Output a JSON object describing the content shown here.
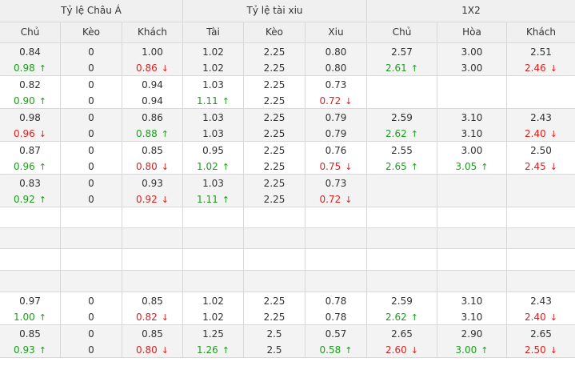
{
  "groups": [
    "Tỷ lệ Châu Á",
    "Tỷ lệ tài xiu",
    "1X2"
  ],
  "columns": [
    "Chủ",
    "Kèo",
    "Khách",
    "Tài",
    "Kèo",
    "Xiu",
    "Chủ",
    "Hòa",
    "Khách"
  ],
  "colors": {
    "up": "#19a019",
    "down": "#e41c1c",
    "header_bg": "#f0f0f0",
    "row_shade": "#f3f3f3",
    "border": "#d8d8d8"
  },
  "rows": [
    {
      "cells": [
        {
          "top": "0.84",
          "bottom": "0.98",
          "dir": "up"
        },
        {
          "top": "0",
          "bottom": "0"
        },
        {
          "top": "1.00",
          "bottom": "0.86",
          "dir": "down"
        },
        {
          "top": "1.02",
          "bottom": "1.02"
        },
        {
          "top": "2.25",
          "bottom": "2.25"
        },
        {
          "top": "0.80",
          "bottom": "0.80"
        },
        {
          "top": "2.57",
          "bottom": "2.61",
          "dir": "up"
        },
        {
          "top": "3.00",
          "bottom": "3.00"
        },
        {
          "top": "2.51",
          "bottom": "2.46",
          "dir": "down"
        }
      ]
    },
    {
      "cells": [
        {
          "top": "0.82",
          "bottom": "0.90",
          "dir": "up"
        },
        {
          "top": "0",
          "bottom": "0"
        },
        {
          "top": "0.94",
          "bottom": "0.94"
        },
        {
          "top": "1.03",
          "bottom": "1.11",
          "dir": "up"
        },
        {
          "top": "2.25",
          "bottom": "2.25"
        },
        {
          "top": "0.73",
          "bottom": "0.72",
          "dir": "down"
        },
        {
          "top": "",
          "bottom": ""
        },
        {
          "top": "",
          "bottom": ""
        },
        {
          "top": "",
          "bottom": ""
        }
      ]
    },
    {
      "cells": [
        {
          "top": "0.98",
          "bottom": "0.96",
          "dir": "down"
        },
        {
          "top": "0",
          "bottom": "0"
        },
        {
          "top": "0.86",
          "bottom": "0.88",
          "dir": "up"
        },
        {
          "top": "1.03",
          "bottom": "1.03"
        },
        {
          "top": "2.25",
          "bottom": "2.25"
        },
        {
          "top": "0.79",
          "bottom": "0.79"
        },
        {
          "top": "2.59",
          "bottom": "2.62",
          "dir": "up"
        },
        {
          "top": "3.10",
          "bottom": "3.10"
        },
        {
          "top": "2.43",
          "bottom": "2.40",
          "dir": "down"
        }
      ]
    },
    {
      "cells": [
        {
          "top": "0.87",
          "bottom": "0.96",
          "dir": "up"
        },
        {
          "top": "0",
          "bottom": "0"
        },
        {
          "top": "0.85",
          "bottom": "0.80",
          "dir": "down"
        },
        {
          "top": "0.95",
          "bottom": "1.02",
          "dir": "up"
        },
        {
          "top": "2.25",
          "bottom": "2.25"
        },
        {
          "top": "0.76",
          "bottom": "0.75",
          "dir": "down"
        },
        {
          "top": "2.55",
          "bottom": "2.65",
          "dir": "up"
        },
        {
          "top": "3.00",
          "bottom": "3.05",
          "dir": "up"
        },
        {
          "top": "2.50",
          "bottom": "2.45",
          "dir": "down"
        }
      ]
    },
    {
      "cells": [
        {
          "top": "0.83",
          "bottom": "0.92",
          "dir": "up"
        },
        {
          "top": "0",
          "bottom": "0"
        },
        {
          "top": "0.93",
          "bottom": "0.92",
          "dir": "down"
        },
        {
          "top": "1.03",
          "bottom": "1.11",
          "dir": "up"
        },
        {
          "top": "2.25",
          "bottom": "2.25"
        },
        {
          "top": "0.73",
          "bottom": "0.72",
          "dir": "down"
        },
        {
          "top": "",
          "bottom": ""
        },
        {
          "top": "",
          "bottom": ""
        },
        {
          "top": "",
          "bottom": ""
        }
      ]
    },
    {
      "empty": true
    },
    {
      "empty": true
    },
    {
      "empty": true
    },
    {
      "empty": true
    },
    {
      "cells": [
        {
          "top": "0.97",
          "bottom": "1.00",
          "dir": "up"
        },
        {
          "top": "0",
          "bottom": "0"
        },
        {
          "top": "0.85",
          "bottom": "0.82",
          "dir": "down"
        },
        {
          "top": "1.02",
          "bottom": "1.02"
        },
        {
          "top": "2.25",
          "bottom": "2.25"
        },
        {
          "top": "0.78",
          "bottom": "0.78"
        },
        {
          "top": "2.59",
          "bottom": "2.62",
          "dir": "up"
        },
        {
          "top": "3.10",
          "bottom": "3.10"
        },
        {
          "top": "2.43",
          "bottom": "2.40",
          "dir": "down"
        }
      ]
    },
    {
      "cells": [
        {
          "top": "0.85",
          "bottom": "0.93",
          "dir": "up"
        },
        {
          "top": "0",
          "bottom": "0"
        },
        {
          "top": "0.85",
          "bottom": "0.80",
          "dir": "down"
        },
        {
          "top": "1.25",
          "bottom": "1.26",
          "dir": "up"
        },
        {
          "top": "2.5",
          "bottom": "2.5"
        },
        {
          "top": "0.57",
          "bottom": "0.58",
          "dir": "up"
        },
        {
          "top": "2.65",
          "bottom": "2.60",
          "dir": "down"
        },
        {
          "top": "2.90",
          "bottom": "3.00",
          "dir": "up"
        },
        {
          "top": "2.65",
          "bottom": "2.50",
          "dir": "down"
        }
      ]
    }
  ]
}
